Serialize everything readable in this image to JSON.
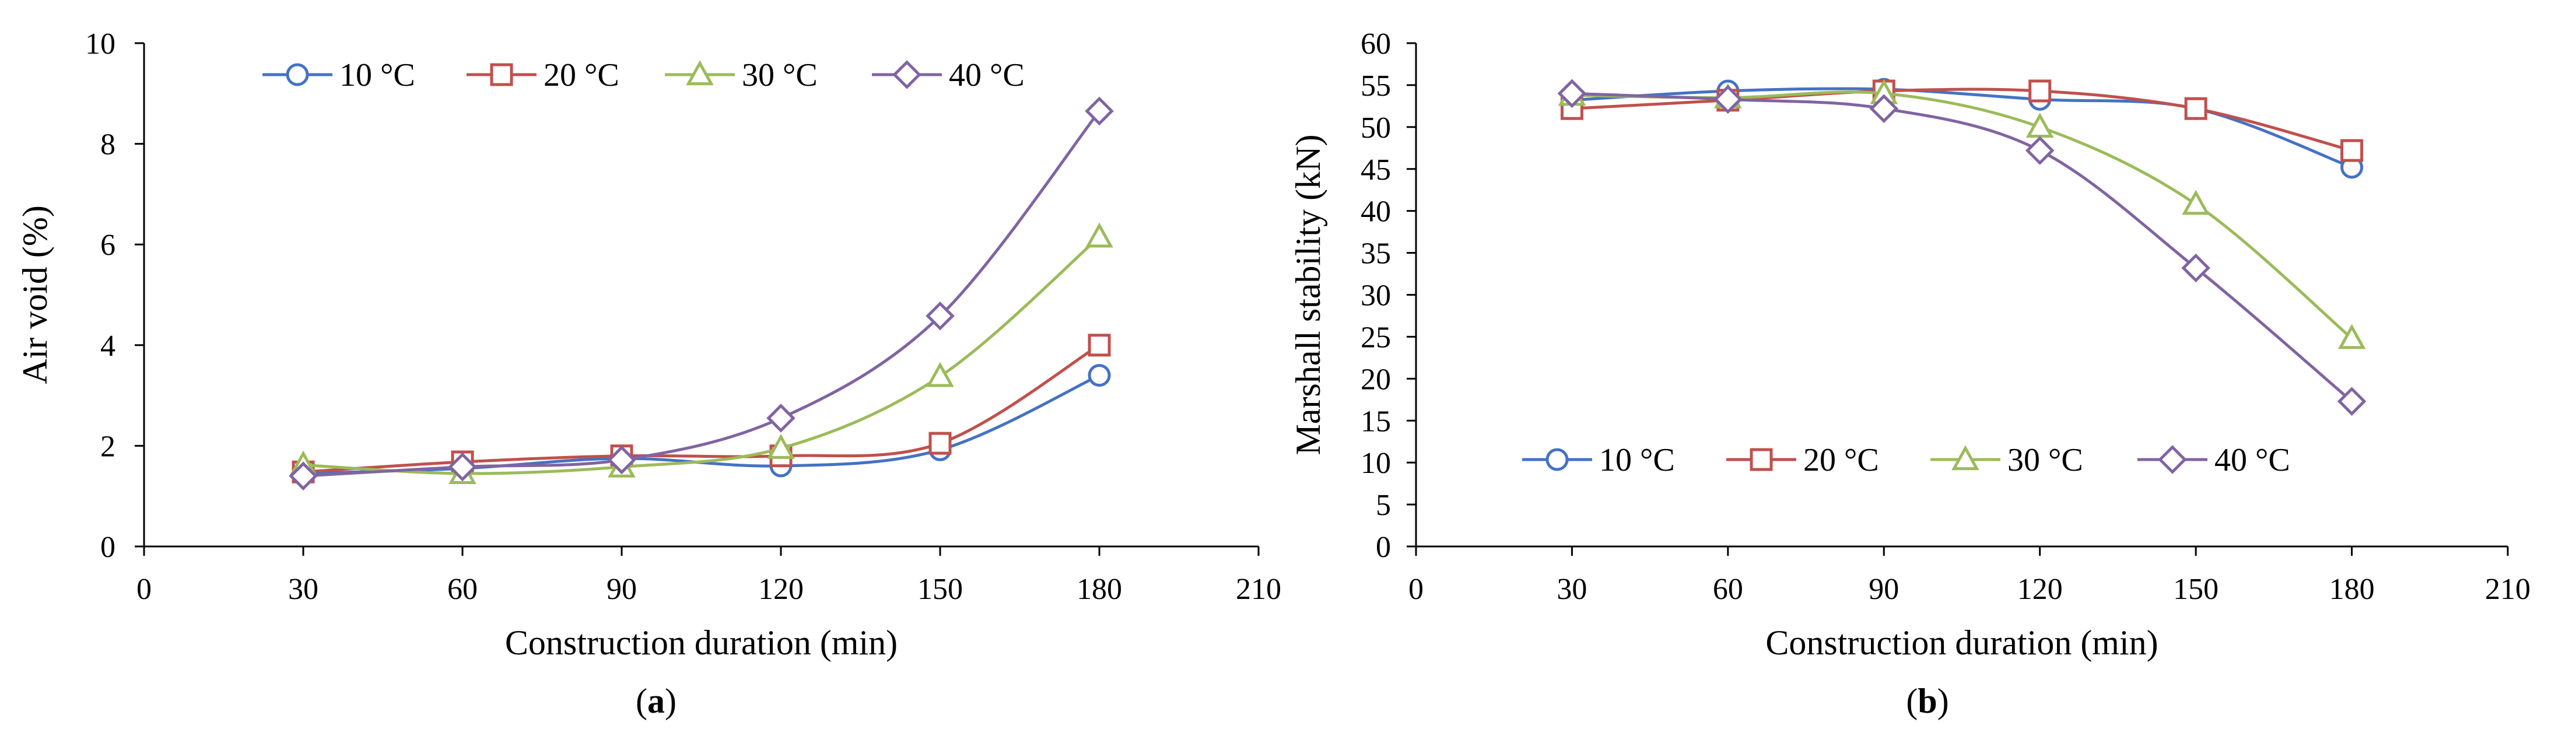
{
  "figure": {
    "caption_a": {
      "open": "(",
      "letter": "a",
      "close": ")"
    },
    "caption_b": {
      "open": "(",
      "letter": "b",
      "close": ")"
    }
  },
  "chart_data": [
    {
      "id": "a",
      "type": "line",
      "smooth": true,
      "xlabel": "Construction duration (min)",
      "ylabel": "Air void (%)",
      "xlim": [
        0,
        210
      ],
      "ylim": [
        0,
        10
      ],
      "xticks": [
        0,
        30,
        60,
        90,
        120,
        150,
        180,
        210
      ],
      "yticks": [
        0,
        2,
        4,
        6,
        8,
        10
      ],
      "legend_position": "top-center",
      "x": [
        30,
        60,
        90,
        120,
        150,
        180
      ],
      "series": [
        {
          "name": "10 °C",
          "color": "#4472C4",
          "marker": "circle",
          "values": [
            1.45,
            1.55,
            1.75,
            1.6,
            1.92,
            3.4
          ]
        },
        {
          "name": "20 °C",
          "color": "#C0504D",
          "marker": "square",
          "values": [
            1.48,
            1.68,
            1.8,
            1.8,
            2.05,
            4.0
          ]
        },
        {
          "name": "30 °C",
          "color": "#9BBB59",
          "marker": "triangle",
          "values": [
            1.62,
            1.45,
            1.58,
            1.95,
            3.38,
            6.15
          ]
        },
        {
          "name": "40 °C",
          "color": "#8064A2",
          "marker": "diamond",
          "values": [
            1.4,
            1.58,
            1.72,
            2.55,
            4.58,
            8.65
          ]
        }
      ]
    },
    {
      "id": "b",
      "type": "line",
      "smooth": true,
      "xlabel": "Construction duration (min)",
      "ylabel": "Marshall stability (kN)",
      "xlim": [
        0,
        210
      ],
      "ylim": [
        0,
        60
      ],
      "xticks": [
        0,
        30,
        60,
        90,
        120,
        150,
        180,
        210
      ],
      "yticks": [
        0,
        5,
        10,
        15,
        20,
        25,
        30,
        35,
        40,
        45,
        50,
        55,
        60
      ],
      "legend_position": "bottom-center",
      "x": [
        30,
        60,
        90,
        120,
        150,
        180
      ],
      "series": [
        {
          "name": "10 °C",
          "color": "#4472C4",
          "marker": "circle",
          "values": [
            53.2,
            54.3,
            54.5,
            53.3,
            52.2,
            45.2
          ]
        },
        {
          "name": "20 °C",
          "color": "#C0504D",
          "marker": "square",
          "values": [
            52.2,
            53.2,
            54.3,
            54.3,
            52.2,
            47.2
          ]
        },
        {
          "name": "30 °C",
          "color": "#9BBB59",
          "marker": "triangle",
          "values": [
            53.8,
            53.5,
            54.0,
            50.0,
            40.8,
            24.8
          ]
        },
        {
          "name": "40 °C",
          "color": "#8064A2",
          "marker": "diamond",
          "values": [
            54.0,
            53.3,
            52.2,
            47.2,
            33.2,
            17.3
          ]
        }
      ]
    }
  ]
}
